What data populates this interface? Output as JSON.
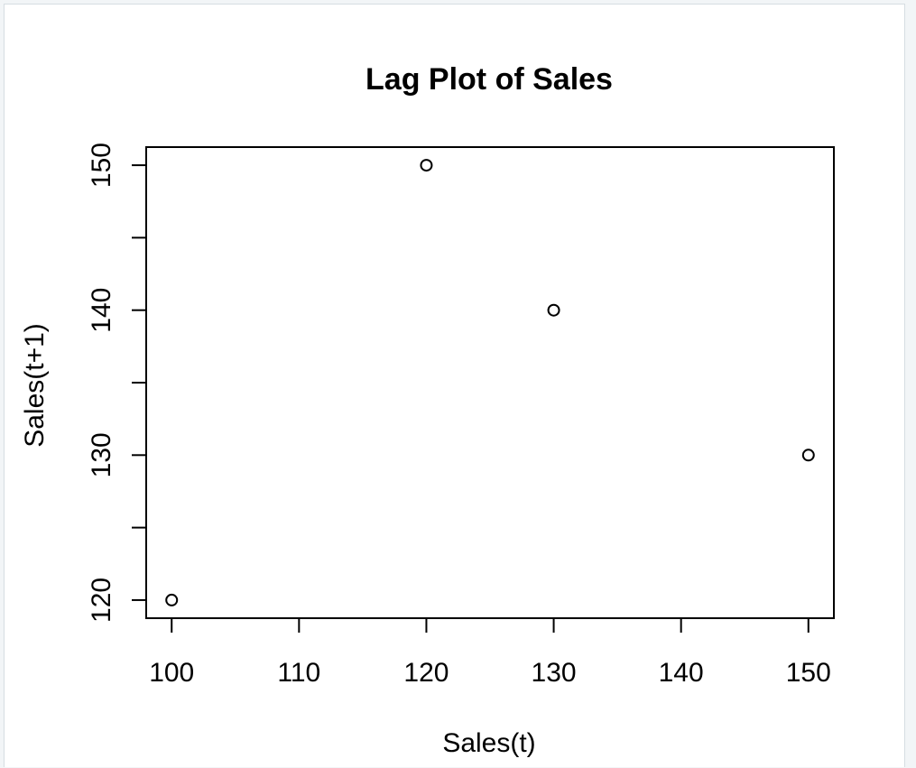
{
  "chart_data": {
    "type": "scatter",
    "title": "Lag Plot of Sales",
    "xlabel": "Sales(t)",
    "ylabel": "Sales(t+1)",
    "x": [
      100,
      120,
      130,
      150
    ],
    "y": [
      120,
      150,
      140,
      130
    ],
    "xlim": [
      98,
      152
    ],
    "ylim": [
      118.75,
      151.25
    ],
    "xticks": [
      100,
      110,
      120,
      130,
      140,
      150
    ],
    "xtick_labels": [
      "100",
      "110",
      "120",
      "130",
      "140",
      "150"
    ],
    "yticks": [
      120,
      125,
      130,
      135,
      140,
      145,
      150
    ],
    "ytick_labels": [
      "120",
      "",
      "130",
      "",
      "140",
      "",
      "150"
    ],
    "marker": "open-circle",
    "color": "#000000",
    "grid": false,
    "legend": "none"
  }
}
